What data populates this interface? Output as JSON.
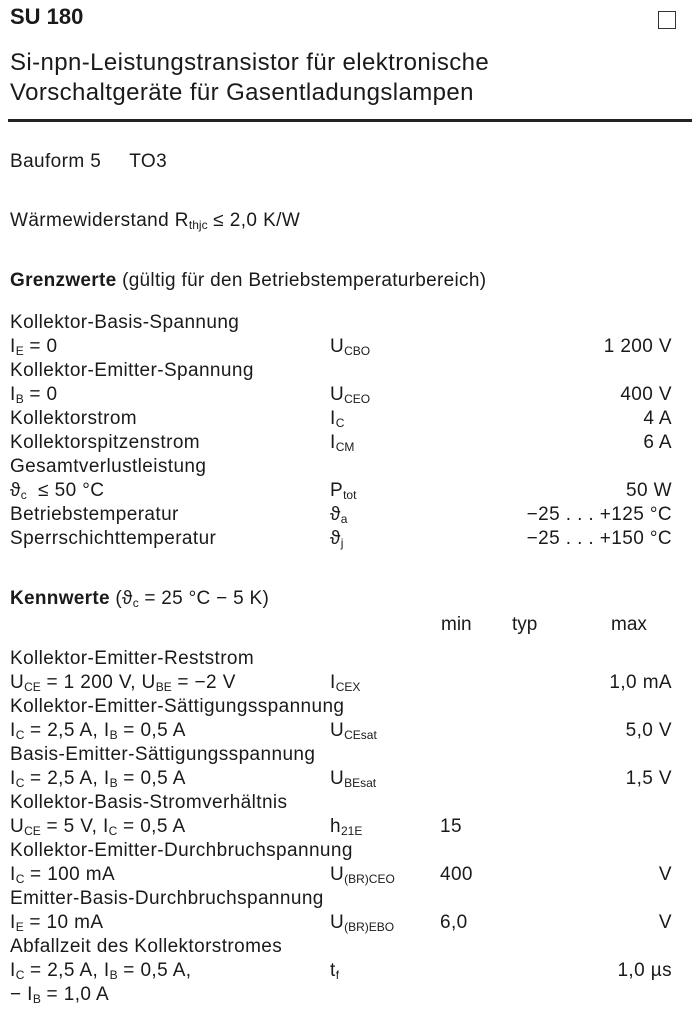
{
  "header": {
    "code": "SU 180",
    "title": [
      "Si-npn-Leistungstransistor für elektronische",
      "Vorschaltgeräte für Gasentladungslampen"
    ]
  },
  "package": {
    "label": "Bauform 5",
    "value": "TO3"
  },
  "thermal": [
    "Wärmewiderstand R",
    {
      "sub": "thjc"
    },
    " ≤ 2,0 K/W"
  ],
  "limits": {
    "heading": "Grenzwerte",
    "note": " (gültig für den Betriebstemperaturbereich)",
    "lines": [
      {
        "text": "Kollektor-Basis-Spannung"
      },
      {
        "text": [
          "I",
          {
            "sub": "E"
          },
          " = 0"
        ],
        "symbol": [
          "U",
          {
            "sub": "CBO"
          }
        ],
        "value": "1 200 V"
      },
      {
        "text": "Kollektor-Emitter-Spannung"
      },
      {
        "text": [
          "I",
          {
            "sub": "B"
          },
          " = 0"
        ],
        "symbol": [
          "U",
          {
            "sub": "CEO"
          }
        ],
        "value": "400 V"
      },
      {
        "text": "Kollektorstrom",
        "symbol": [
          "I",
          {
            "sub": "C"
          }
        ],
        "value": "4 A"
      },
      {
        "text": "Kollektorspitzenstrom",
        "symbol": [
          "I",
          {
            "sub": "CM"
          }
        ],
        "value": "6 A"
      },
      {
        "text": "Gesamtverlustleistung"
      },
      {
        "text": [
          "ϑ",
          {
            "sub": "c"
          },
          "  ≤ 50 °C"
        ],
        "symbol": [
          "P",
          {
            "sub": "tot"
          }
        ],
        "value": "50 W"
      },
      {
        "text": "Betriebstemperatur",
        "symbol": [
          "ϑ",
          {
            "sub": "a"
          }
        ],
        "value": "−25 . . . +125 °C"
      },
      {
        "text": "Sperrschichttemperatur",
        "symbol": [
          "ϑ",
          {
            "sub": "j"
          }
        ],
        "value": "−25 . . . +150 °C"
      }
    ]
  },
  "characteristics": {
    "heading": "Kennwerte",
    "note": [
      " (ϑ",
      {
        "sub": "c"
      },
      " = 25 °C − 5 K)"
    ],
    "columns": [
      "min",
      "typ",
      "max"
    ],
    "lines": [
      {
        "text": "Kollektor-Emitter-Reststrom"
      },
      {
        "text": [
          "U",
          {
            "sub": "CE"
          },
          " = 1 200 V, U",
          {
            "sub": "BE"
          },
          " = −2 V"
        ],
        "symbol": [
          "I",
          {
            "sub": "CEX"
          }
        ],
        "max": "1,0 mA"
      },
      {
        "text": "Kollektor-Emitter-Sättigungsspannung"
      },
      {
        "text": [
          "I",
          {
            "sub": "C"
          },
          " = 2,5 A, I",
          {
            "sub": "B"
          },
          " = 0,5 A"
        ],
        "symbol": [
          "U",
          {
            "sub": "CEsat"
          }
        ],
        "max": "5,0 V"
      },
      {
        "text": "Basis-Emitter-Sättigungsspannung"
      },
      {
        "text": [
          "I",
          {
            "sub": "C"
          },
          " = 2,5 A, I",
          {
            "sub": "B"
          },
          " = 0,5 A"
        ],
        "symbol": [
          "U",
          {
            "sub": "BEsat"
          }
        ],
        "max": "1,5 V"
      },
      {
        "text": "Kollektor-Basis-Stromverhältnis"
      },
      {
        "text": [
          "U",
          {
            "sub": "CE"
          },
          " = 5 V, I",
          {
            "sub": "C"
          },
          " = 0,5 A"
        ],
        "symbol": [
          "h",
          {
            "sub": "21E"
          }
        ],
        "min": "15"
      },
      {
        "text": "Kollektor-Emitter-Durchbruchspannung"
      },
      {
        "text": [
          "I",
          {
            "sub": "C"
          },
          " = 100 mA"
        ],
        "symbol": [
          "U",
          {
            "sub": "(BR)CEO"
          }
        ],
        "min": "400",
        "max": "V"
      },
      {
        "text": "Emitter-Basis-Durchbruchspannung"
      },
      {
        "text": [
          "I",
          {
            "sub": "E"
          },
          " = 10 mA"
        ],
        "symbol": [
          "U",
          {
            "sub": "(BR)EBO"
          }
        ],
        "min": "6,0",
        "max": "V"
      },
      {
        "text": "Abfallzeit des Kollektorstromes"
      },
      {
        "text": [
          "I",
          {
            "sub": "C"
          },
          " = 2,5 A, I",
          {
            "sub": "B"
          },
          " = 0,5 A,"
        ],
        "symbol": [
          "t",
          {
            "sub": "f"
          }
        ],
        "max": "1,0 µs"
      },
      {
        "text": [
          "− I",
          {
            "sub": "B"
          },
          " = 1,0 A"
        ]
      }
    ]
  }
}
